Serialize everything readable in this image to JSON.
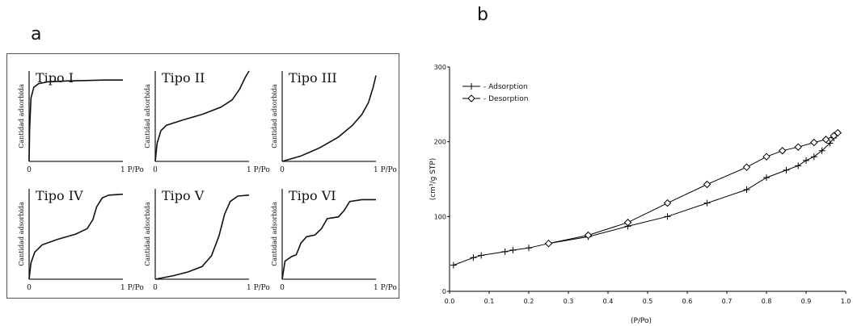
{
  "panel_a": {
    "label": "a",
    "ylabel": "Cantidad adsorbida",
    "x_start_label": "0",
    "x_end_label": "1  P/Po",
    "types": [
      {
        "name": "Tipo I",
        "curve": [
          [
            0,
            0
          ],
          [
            0.005,
            0.35
          ],
          [
            0.02,
            0.7
          ],
          [
            0.05,
            0.82
          ],
          [
            0.1,
            0.86
          ],
          [
            0.2,
            0.88
          ],
          [
            0.4,
            0.89
          ],
          [
            0.6,
            0.895
          ],
          [
            0.8,
            0.9
          ],
          [
            1.0,
            0.9
          ]
        ]
      },
      {
        "name": "Tipo II",
        "curve": [
          [
            0,
            0
          ],
          [
            0.02,
            0.2
          ],
          [
            0.06,
            0.34
          ],
          [
            0.12,
            0.4
          ],
          [
            0.3,
            0.46
          ],
          [
            0.5,
            0.52
          ],
          [
            0.7,
            0.6
          ],
          [
            0.82,
            0.68
          ],
          [
            0.9,
            0.8
          ],
          [
            0.96,
            0.93
          ],
          [
            1.0,
            1.0
          ]
        ]
      },
      {
        "name": "Tipo III",
        "curve": [
          [
            0,
            0
          ],
          [
            0.2,
            0.06
          ],
          [
            0.4,
            0.15
          ],
          [
            0.6,
            0.27
          ],
          [
            0.75,
            0.4
          ],
          [
            0.85,
            0.52
          ],
          [
            0.92,
            0.65
          ],
          [
            0.97,
            0.82
          ],
          [
            1.0,
            0.95
          ]
        ]
      },
      {
        "name": "Tipo IV",
        "curve": [
          [
            0,
            0
          ],
          [
            0.02,
            0.18
          ],
          [
            0.06,
            0.3
          ],
          [
            0.14,
            0.38
          ],
          [
            0.3,
            0.44
          ],
          [
            0.5,
            0.5
          ],
          [
            0.62,
            0.56
          ],
          [
            0.68,
            0.66
          ],
          [
            0.72,
            0.8
          ],
          [
            0.78,
            0.9
          ],
          [
            0.85,
            0.93
          ],
          [
            1.0,
            0.94
          ]
        ]
      },
      {
        "name": "Tipo V",
        "curve": [
          [
            0,
            0
          ],
          [
            0.2,
            0.04
          ],
          [
            0.35,
            0.08
          ],
          [
            0.5,
            0.14
          ],
          [
            0.6,
            0.26
          ],
          [
            0.68,
            0.48
          ],
          [
            0.74,
            0.72
          ],
          [
            0.8,
            0.86
          ],
          [
            0.88,
            0.92
          ],
          [
            1.0,
            0.93
          ]
        ]
      },
      {
        "name": "Tipo VI",
        "curve": [
          [
            0,
            0
          ],
          [
            0.03,
            0.2
          ],
          [
            0.1,
            0.25
          ],
          [
            0.15,
            0.27
          ],
          [
            0.2,
            0.4
          ],
          [
            0.26,
            0.47
          ],
          [
            0.35,
            0.49
          ],
          [
            0.42,
            0.56
          ],
          [
            0.48,
            0.67
          ],
          [
            0.6,
            0.69
          ],
          [
            0.66,
            0.76
          ],
          [
            0.72,
            0.86
          ],
          [
            0.85,
            0.88
          ],
          [
            1.0,
            0.88
          ]
        ]
      }
    ]
  },
  "chart_data": {
    "type": "line",
    "label": "b",
    "xlabel": "(P/Po)",
    "ylabel": "(cm³/g STP)",
    "xlim": [
      0,
      1
    ],
    "ylim": [
      0,
      300
    ],
    "x_ticks": [
      "0.0",
      "0.1",
      "0.2",
      "0.3",
      "0.4",
      "0.5",
      "0.6",
      "0.7",
      "0.8",
      "0.9",
      "1.0"
    ],
    "y_ticks": [
      "0",
      "100",
      "200",
      "300"
    ],
    "legend_position": "top-left",
    "series": [
      {
        "name": "- Adsorption",
        "marker": "plus",
        "x": [
          0.01,
          0.06,
          0.08,
          0.14,
          0.16,
          0.2,
          0.25,
          0.35,
          0.45,
          0.55,
          0.65,
          0.75,
          0.8,
          0.85,
          0.88,
          0.9,
          0.92,
          0.94,
          0.96,
          0.97,
          0.98
        ],
        "y": [
          35,
          45,
          48,
          53,
          55,
          58,
          64,
          73,
          87,
          100,
          118,
          136,
          152,
          162,
          168,
          175,
          180,
          188,
          198,
          205,
          211
        ]
      },
      {
        "name": "- Desorption",
        "marker": "diamond",
        "x": [
          0.98,
          0.97,
          0.95,
          0.92,
          0.88,
          0.84,
          0.8,
          0.75,
          0.65,
          0.55,
          0.45,
          0.35,
          0.25
        ],
        "y": [
          212,
          208,
          203,
          199,
          193,
          188,
          180,
          166,
          143,
          118,
          92,
          75,
          64
        ]
      }
    ]
  }
}
